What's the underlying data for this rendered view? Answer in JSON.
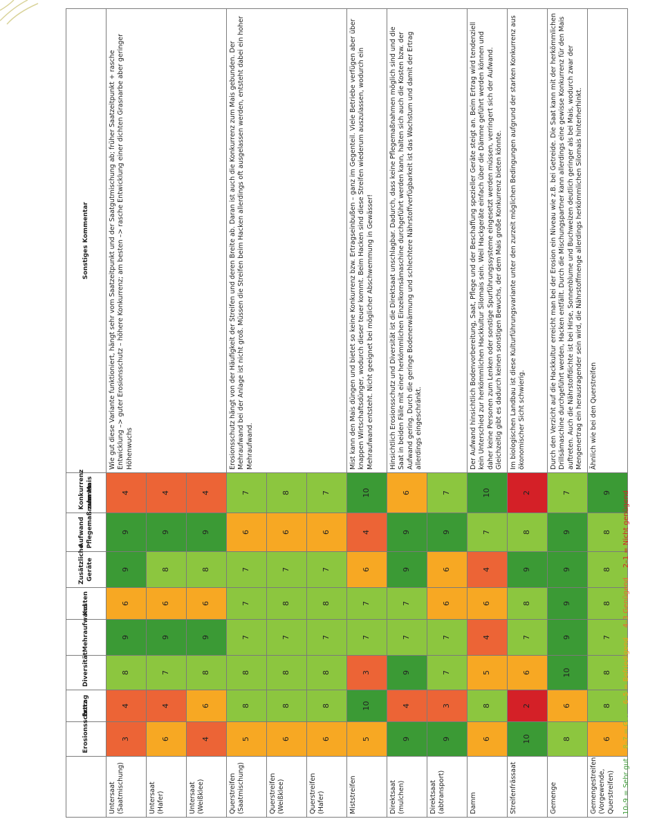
{
  "table": {
    "headers": [
      "Erosionsschutz",
      "Ertrag",
      "Diversität",
      "Mehraufwand",
      "Kosten",
      "Zusätzliche Geräte",
      "Aufwand Pflegemaßnahmen",
      "Konkurrenz zum Mais",
      "Sonstiges Kommentar"
    ],
    "rows": [
      {
        "label": "Untersaat (Saatmischung)",
        "scores": [
          3,
          4,
          8,
          9,
          6,
          9,
          9,
          4
        ],
        "comment": "Wie gut diese Variante funktioniert, hängt sehr vom Saatzeitpunkt und der Saatgutmischung ab; früher Saatzeitpunkt + rasche Entwicklung –> guter Erosionsschutz – höhere Konkurrenz; am besten –> rasche Entwicklung einer dichten Grasnarbe aber geringer Höhenwuchs"
      },
      {
        "label": "Untersaat (Hafer)",
        "scores": [
          6,
          4,
          7,
          9,
          6,
          8,
          9,
          4
        ]
      },
      {
        "label": "Untersaat (Weißklee)",
        "scores": [
          4,
          6,
          8,
          9,
          6,
          8,
          9,
          4
        ]
      },
      {
        "label": "Querstreifen (Saatmischung)",
        "scores": [
          5,
          8,
          8,
          7,
          7,
          7,
          6,
          7
        ],
        "comment": "Erosionsschutz hängt von der Häufigkeit der Streifen und deren Breite ab. Daran ist auch die Konkurrenz zum Mais gebunden. Der Mehraufwand bei der Anlage ist nicht groß. Müssen die Streifen beim Hacken allerdings oft ausgelassen werden, entsteht dabei ein hoher Mehraufwand."
      },
      {
        "label": "Querstreifen (Weißklee)",
        "scores": [
          6,
          8,
          8,
          7,
          8,
          7,
          6,
          8
        ]
      },
      {
        "label": "Querstreifen (Hafer)",
        "scores": [
          6,
          8,
          8,
          7,
          8,
          7,
          6,
          7
        ]
      },
      {
        "label": "Miststreifen",
        "scores": [
          5,
          10,
          3,
          7,
          7,
          6,
          4,
          10
        ],
        "comment": "Mist kann den Mais düngen und bietet so keine Konkurrenz bzw. Ertragseinbußen – ganz im Gegenteil. Viele Betriebe verfügen aber über knappen Wirtschaftsdünger, wodurch dieser teuer kommt. Beim Hacken sind diese Streifen wiederum auszulassen, wodurch ein Mehraufwand entsteht. Nicht geeignet bei möglicher Abschwemmung in Gewässer!"
      },
      {
        "label": "Direktsaat (mulchen)",
        "scores": [
          9,
          4,
          9,
          7,
          7,
          9,
          9,
          6
        ],
        "comment": "Hinsichtlich Erosionsschutz und Diversität ist die Direktsaat unschlagbar. Dadurch, dass keine Pflegemaßnahmen möglich sind und die Saat in beiden Fälle mit einer herkömmlichen Einzelkornsämaschine durchgeführt werden kann, halten sich auch die Kosten bzw. der Aufwand gering. Durch die geringe Bodenerwärmung und schlechtere Nährstoffverfügbarkeit ist das Wachstum und damit der Ertrag allerdings eingeschränkt."
      },
      {
        "label": "Direktsaat (abtransport)",
        "scores": [
          9,
          3,
          7,
          7,
          6,
          6,
          9,
          7
        ]
      },
      {
        "label": "Damm",
        "scores": [
          6,
          8,
          5,
          4,
          6,
          4,
          7,
          10
        ],
        "comment": "Der Aufwand hinsichtlich Bodenvorbereitung, Saat, Pflege und der Beschaffung spezieller Geräte steigt an. Beim Ertrag wird tendenziell kein Unterschied zur herkömmlichen Hackkultur Silomais sein. Weil Hackgeräte einfach über die Dämme geführt werden können und daher keine Personen zum Lenken oder sonstige Spurführungssysteme eingesetzt werden müssen, verringert sich der Aufwand. Gleichzeitig gibt es dadurch keinen sonstigen Bewuchs, der dem Mais große Konkurrenz bieten könnte."
      },
      {
        "label": "Streifenfrässaat",
        "scores": [
          10,
          2,
          6,
          7,
          8,
          9,
          8,
          2
        ],
        "comment": "Im biologischen Landbau ist diese Kulturführungsvariante unter den zurzeit möglichen Bedingungen aufgrund der starken Konkurrenz aus ökonomischer Sicht schwierig."
      },
      {
        "label": "Gemenge",
        "scores": [
          8,
          6,
          10,
          9,
          9,
          9,
          9,
          7
        ],
        "comment": "Durch den Verzicht auf die Hackkultur erreicht man bei der Erosion ein Niveau wie z.B. bei Getreide. Die Saat kann mit der herkömmlichen Drillsämaschine durchgeführt werden, Hacken entfällt. Durch die Mischungspartner kann allerdings eine gewisse Konkurrenz für den Mais auftreten. Auch die Nährstoffdichte ist bei Hirse, Sonnenblume und Buchweizen deutlich geringer als bei Mais, wodurch zwar der Mengenertrag ein herausragender sein wird, die Nährstoffmenge allerdings herkömmlichen Silomais hinterherhinkt."
      },
      {
        "label": "Gemengestreifen (Vorgewende, Querstreifen)",
        "scores": [
          6,
          8,
          8,
          7,
          8,
          8,
          8,
          9
        ],
        "comment": "Ähnlich wie bei den Querstreifen"
      }
    ]
  },
  "legend": [
    "10–9 = Sehr gut",
    "8–7 = Gut",
    "6–5 = Befriedigend",
    "4–3 Genügend",
    "2–1 = Nicht genügend"
  ]
}
